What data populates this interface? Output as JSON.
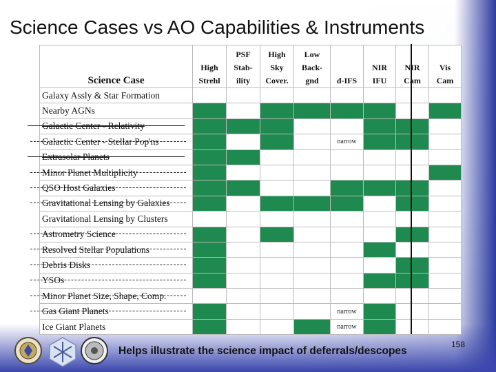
{
  "title": "Science Cases vs AO Capabilities & Instruments",
  "columns": [
    "Science Case",
    "High Strehl",
    "PSF Stab-ility",
    "High Sky Cover.",
    "Low Back-gnd",
    "d-IFS",
    "NIR IFU",
    "NIR Cam",
    "Vis Cam"
  ],
  "column_lines": [
    [
      "Science Case"
    ],
    [
      "High",
      "Strehl"
    ],
    [
      "PSF",
      "Stab-",
      "ility"
    ],
    [
      "High",
      "Sky",
      "Cover."
    ],
    [
      "Low",
      "Back-",
      "gnd"
    ],
    [
      "d-IFS"
    ],
    [
      "NIR",
      "IFU"
    ],
    [
      "NIR",
      "Cam"
    ],
    [
      "Vis",
      "Cam"
    ]
  ],
  "rows": [
    {
      "label": "Galaxy Assly & Star Formation",
      "cells": [
        "w",
        "w",
        "w",
        "w",
        "w",
        "w",
        "w",
        "w"
      ],
      "mark": "none"
    },
    {
      "label": "Nearby AGNs",
      "cells": [
        "g",
        "w",
        "g",
        "g",
        "g",
        "g",
        "w",
        "g"
      ],
      "mark": "none"
    },
    {
      "label": "Galactic Center - Relativity",
      "cells": [
        "g",
        "g",
        "g",
        "w",
        "w",
        "g",
        "g",
        "w"
      ],
      "mark": "solid"
    },
    {
      "label": "Galactic Center - Stellar Pop'ns",
      "cells": [
        "g",
        "w",
        "g",
        "w",
        "narrow",
        "g",
        "g",
        "w"
      ],
      "mark": "dash"
    },
    {
      "label": "Extrasolar Planets",
      "cells": [
        "g",
        "g",
        "w",
        "w",
        "w",
        "w",
        "w",
        "w"
      ],
      "mark": "solid"
    },
    {
      "label": "Minor Planet Multiplicity",
      "cells": [
        "g",
        "w",
        "w",
        "w",
        "w",
        "w",
        "w",
        "g"
      ],
      "mark": "dash"
    },
    {
      "label": "QSO Host Galaxies",
      "cells": [
        "g",
        "g",
        "w",
        "w",
        "g",
        "g",
        "g",
        "w"
      ],
      "mark": "dash"
    },
    {
      "label": "Gravitational Lensing by Galaxies",
      "cells": [
        "g",
        "w",
        "g",
        "g",
        "g",
        "w",
        "g",
        "w"
      ],
      "mark": "dash"
    },
    {
      "label": "Gravitational Lensing by Clusters",
      "cells": [
        "w",
        "w",
        "w",
        "w",
        "w",
        "w",
        "w",
        "w"
      ],
      "mark": "none"
    },
    {
      "label": "Astrometry Science",
      "cells": [
        "g",
        "w",
        "g",
        "w",
        "w",
        "w",
        "g",
        "w"
      ],
      "mark": "dash"
    },
    {
      "label": "Resolved Stellar Populations",
      "cells": [
        "g",
        "w",
        "w",
        "w",
        "w",
        "g",
        "w",
        "w"
      ],
      "mark": "dash"
    },
    {
      "label": "Debris Disks",
      "cells": [
        "g",
        "w",
        "w",
        "w",
        "w",
        "w",
        "g",
        "w"
      ],
      "mark": "dash"
    },
    {
      "label": "YSOs",
      "cells": [
        "g",
        "w",
        "w",
        "w",
        "w",
        "g",
        "g",
        "w"
      ],
      "mark": "dash"
    },
    {
      "label": "Minor Planet Size, Shape, Comp.",
      "cells": [
        "w",
        "w",
        "w",
        "w",
        "w",
        "w",
        "w",
        "w"
      ],
      "mark": "dash"
    },
    {
      "label": "Gas Giant Planets",
      "cells": [
        "g",
        "w",
        "w",
        "w",
        "narrow",
        "g",
        "w",
        "w"
      ],
      "mark": "dash"
    },
    {
      "label": "Ice Giant Planets",
      "cells": [
        "g",
        "w",
        "w",
        "g",
        "narrow",
        "g",
        "w",
        "w"
      ],
      "mark": "none"
    }
  ],
  "narrow_text": "narrow",
  "caption": "Helps illustrate the science impact of deferrals/descopes",
  "page_number": "158",
  "colors": {
    "green": "#1e8a50",
    "band": "#2d3aa0"
  },
  "logos": [
    "seal-logo",
    "snowflake-logo",
    "emblem-logo"
  ]
}
